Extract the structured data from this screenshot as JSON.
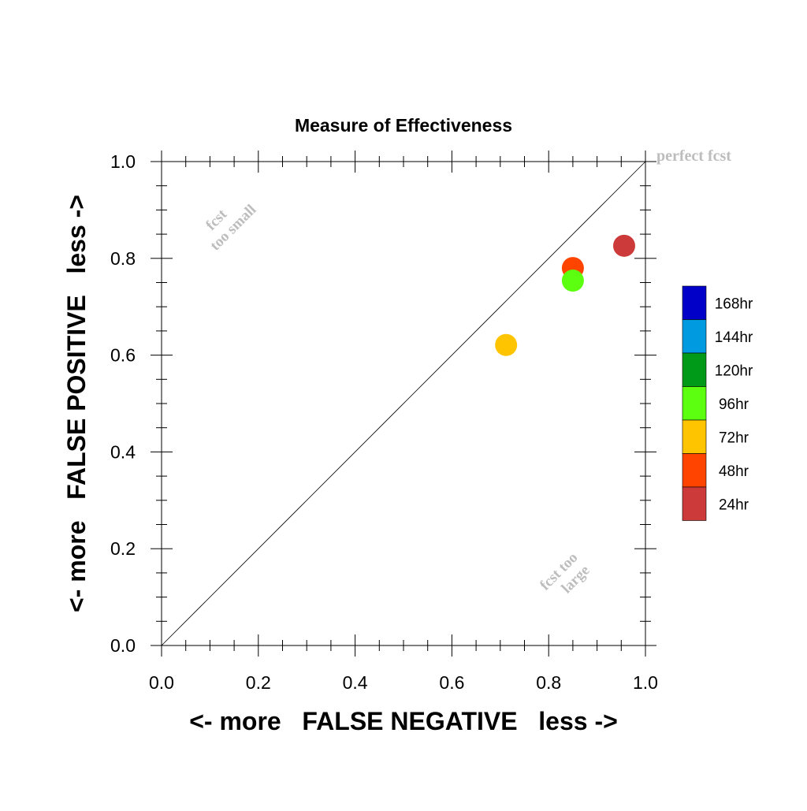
{
  "chart_data": {
    "type": "scatter",
    "title": "Measure of Effectiveness",
    "xlabel": "<- more   FALSE NEGATIVE   less ->",
    "ylabel": "<- more   FALSE POSITIVE   less ->",
    "xlim": [
      0.0,
      1.0
    ],
    "ylim": [
      0.0,
      1.0
    ],
    "x_ticks": [
      "0.0",
      "0.2",
      "0.4",
      "0.6",
      "0.8",
      "1.0"
    ],
    "y_ticks": [
      "0.0",
      "0.2",
      "0.4",
      "0.6",
      "0.8",
      "1.0"
    ],
    "grid": false,
    "diagonal_line": true,
    "annotations": {
      "perfect": "perfect fcst",
      "small_line1": "fcst",
      "small_line2": "too small",
      "large_line1": "fcst too",
      "large_line2": "large"
    },
    "legend": {
      "placement": "right",
      "items": [
        {
          "label": "168hr",
          "color": "#0000c8"
        },
        {
          "label": "144hr",
          "color": "#009ae0"
        },
        {
          "label": "120hr",
          "color": "#009a18"
        },
        {
          "label": "96hr",
          "color": "#5cff10"
        },
        {
          "label": "72hr",
          "color": "#ffc400"
        },
        {
          "label": "48hr",
          "color": "#ff4400"
        },
        {
          "label": "24hr",
          "color": "#cc3a3a"
        }
      ]
    },
    "series": [
      {
        "name": "72hr",
        "color": "#ffc400",
        "x": 0.712,
        "y": 0.621
      },
      {
        "name": "48hr",
        "color": "#ff4400",
        "x": 0.85,
        "y": 0.78
      },
      {
        "name": "96hr",
        "color": "#5cff10",
        "x": 0.85,
        "y": 0.754
      },
      {
        "name": "24hr",
        "color": "#cc3a3a",
        "x": 0.956,
        "y": 0.826
      }
    ]
  }
}
